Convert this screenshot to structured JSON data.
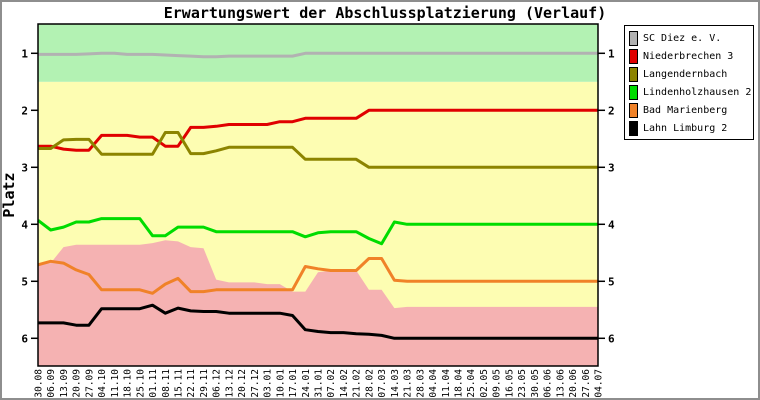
{
  "chart_data": {
    "type": "line",
    "title": "Erwartungswert der Abschlussplatzierung (Verlauf)",
    "ylabel": "Platz",
    "y_axis": {
      "ticks": [
        1,
        2,
        3,
        4,
        5,
        6
      ],
      "min": 0.486,
      "max": 6.486,
      "inverted": true,
      "mirrored_right": true
    },
    "legend_position": "right",
    "grid": false,
    "x_labels": [
      "30.08",
      "06.09",
      "13.09",
      "20.09",
      "27.09",
      "04.10",
      "11.10",
      "18.10",
      "25.10",
      "01.11",
      "08.11",
      "15.11",
      "22.11",
      "29.11",
      "06.12",
      "13.12",
      "20.12",
      "27.12",
      "03.01",
      "10.01",
      "17.01",
      "24.01",
      "31.01",
      "07.02",
      "14.02",
      "21.02",
      "28.02",
      "07.03",
      "14.03",
      "21.03",
      "28.03",
      "04.04",
      "11.04",
      "18.04",
      "25.04",
      "02.05",
      "09.05",
      "16.05",
      "23.05",
      "30.05",
      "06.06",
      "13.06",
      "20.06",
      "27.06",
      "04.07"
    ],
    "bands": {
      "promotion_zone": {
        "color": "#b3f2b3",
        "from_rank": 0.486,
        "to_rank": 1.5
      },
      "mid_table": {
        "color": "#fdfdb2",
        "from_rank": 1.5,
        "to_rank": 6.486
      },
      "relegation_zone": {
        "color": "#f5b2b2",
        "boundary_by_date": [
          4.7,
          4.68,
          4.4,
          4.36,
          4.36,
          4.36,
          4.36,
          4.36,
          4.36,
          4.33,
          4.28,
          4.3,
          4.4,
          4.42,
          4.97,
          5.02,
          5.02,
          5.02,
          5.05,
          5.05,
          5.18,
          5.18,
          4.84,
          4.81,
          4.81,
          4.81,
          5.15,
          5.15,
          5.47,
          5.45,
          5.45,
          5.45,
          5.45,
          5.45,
          5.45,
          5.45,
          5.45,
          5.45,
          5.45,
          5.45,
          5.45,
          5.45,
          5.45,
          5.45,
          5.45
        ],
        "to_rank": 6.486
      }
    },
    "series": [
      {
        "name": "SC Diez e. V.",
        "color": "#b2b2b2",
        "values": [
          1.02,
          1.02,
          1.02,
          1.02,
          1.01,
          1.0,
          1.0,
          1.02,
          1.02,
          1.02,
          1.03,
          1.04,
          1.05,
          1.06,
          1.06,
          1.05,
          1.05,
          1.05,
          1.05,
          1.05,
          1.05,
          1.0,
          1.0,
          1.0,
          1.0,
          1.0,
          1.0,
          1.0,
          1.0,
          1.0,
          1.0,
          1.0,
          1.0,
          1.0,
          1.0,
          1.0,
          1.0,
          1.0,
          1.0,
          1.0,
          1.0,
          1.0,
          1.0,
          1.0,
          1.0
        ]
      },
      {
        "name": "Niederbrechen 3",
        "color": "#e00000",
        "values": [
          2.63,
          2.63,
          2.68,
          2.7,
          2.7,
          2.44,
          2.44,
          2.44,
          2.47,
          2.47,
          2.63,
          2.63,
          2.3,
          2.3,
          2.28,
          2.25,
          2.25,
          2.25,
          2.25,
          2.2,
          2.2,
          2.14,
          2.14,
          2.14,
          2.14,
          2.14,
          2.0,
          2.0,
          2.0,
          2.0,
          2.0,
          2.0,
          2.0,
          2.0,
          2.0,
          2.0,
          2.0,
          2.0,
          2.0,
          2.0,
          2.0,
          2.0,
          2.0,
          2.0,
          2.0
        ]
      },
      {
        "name": "Langendernbach",
        "color": "#8c8400",
        "values": [
          2.67,
          2.67,
          2.52,
          2.51,
          2.51,
          2.77,
          2.77,
          2.77,
          2.77,
          2.77,
          2.39,
          2.39,
          2.76,
          2.76,
          2.71,
          2.65,
          2.65,
          2.65,
          2.65,
          2.65,
          2.65,
          2.86,
          2.86,
          2.86,
          2.86,
          2.86,
          3.0,
          3.0,
          3.0,
          3.0,
          3.0,
          3.0,
          3.0,
          3.0,
          3.0,
          3.0,
          3.0,
          3.0,
          3.0,
          3.0,
          3.0,
          3.0,
          3.0,
          3.0,
          3.0
        ]
      },
      {
        "name": "Lindenholzhausen 2",
        "color": "#00dc00",
        "values": [
          3.93,
          4.1,
          4.05,
          3.96,
          3.96,
          3.9,
          3.9,
          3.9,
          3.9,
          4.2,
          4.2,
          4.05,
          4.05,
          4.05,
          4.13,
          4.13,
          4.13,
          4.13,
          4.13,
          4.13,
          4.13,
          4.22,
          4.15,
          4.13,
          4.13,
          4.13,
          4.25,
          4.34,
          3.96,
          4.0,
          4.0,
          4.0,
          4.0,
          4.0,
          4.0,
          4.0,
          4.0,
          4.0,
          4.0,
          4.0,
          4.0,
          4.0,
          4.0,
          4.0,
          4.0
        ]
      },
      {
        "name": "Bad Marienberg",
        "color": "#f08228",
        "values": [
          4.71,
          4.65,
          4.68,
          4.8,
          4.88,
          5.15,
          5.15,
          5.15,
          5.15,
          5.21,
          5.05,
          4.95,
          5.18,
          5.18,
          5.15,
          5.15,
          5.15,
          5.15,
          5.15,
          5.15,
          5.15,
          4.74,
          4.78,
          4.81,
          4.81,
          4.81,
          4.6,
          4.6,
          4.98,
          5.0,
          5.0,
          5.0,
          5.0,
          5.0,
          5.0,
          5.0,
          5.0,
          5.0,
          5.0,
          5.0,
          5.0,
          5.0,
          5.0,
          5.0,
          5.0
        ]
      },
      {
        "name": "Lahn Limburg 2",
        "color": "#000000",
        "values": [
          5.73,
          5.73,
          5.73,
          5.77,
          5.77,
          5.48,
          5.48,
          5.48,
          5.48,
          5.42,
          5.56,
          5.47,
          5.52,
          5.53,
          5.53,
          5.56,
          5.56,
          5.56,
          5.56,
          5.56,
          5.6,
          5.85,
          5.88,
          5.9,
          5.9,
          5.92,
          5.93,
          5.95,
          6.0,
          6.0,
          6.0,
          6.0,
          6.0,
          6.0,
          6.0,
          6.0,
          6.0,
          6.0,
          6.0,
          6.0,
          6.0,
          6.0,
          6.0,
          6.0,
          6.0
        ]
      }
    ]
  }
}
